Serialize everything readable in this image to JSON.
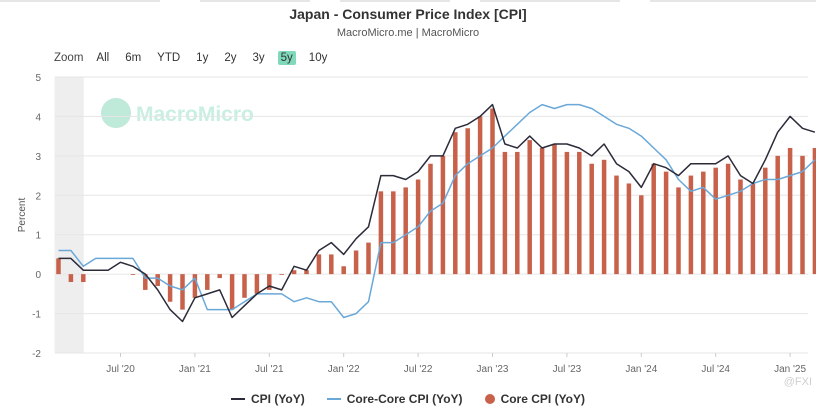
{
  "header": {
    "title": "Japan - Consumer Price Index [CPI]",
    "subtitle": "MacroMicro.me | MacroMicro"
  },
  "range_selector": {
    "zoom_label": "Zoom",
    "options": [
      "All",
      "6m",
      "YTD",
      "1y",
      "2y",
      "3y",
      "5y",
      "10y"
    ],
    "active": "5y"
  },
  "watermark": {
    "text": "MacroMicro",
    "corner_text": "@FXI"
  },
  "colors": {
    "cpi": "#2b2b3a",
    "core_core": "#6aa8d8",
    "core": "#c8614a",
    "active_range": "#7fd9ba",
    "grid": "#e6e6e6",
    "shade": "#eeeeee"
  },
  "chart_data": {
    "type": "bar+line",
    "ylabel": "Percent",
    "ylim": [
      -2,
      5
    ],
    "yticks": [
      -2,
      -1,
      0,
      1,
      2,
      3,
      4,
      5
    ],
    "x_tick_labels": [
      "Jul '20",
      "Jan '21",
      "Jul '21",
      "Jan '22",
      "Jul '22",
      "Jan '23",
      "Jul '23",
      "Jan '24",
      "Jul '24",
      "Jan '25"
    ],
    "x_tick_months": [
      "2020-07",
      "2021-01",
      "2021-07",
      "2022-01",
      "2022-07",
      "2023-01",
      "2023-07",
      "2024-01",
      "2024-07",
      "2025-01"
    ],
    "shaded_period": {
      "start": "2020-02",
      "end": "2020-04"
    },
    "months": [
      "2020-02",
      "2020-03",
      "2020-04",
      "2020-05",
      "2020-06",
      "2020-07",
      "2020-08",
      "2020-09",
      "2020-10",
      "2020-11",
      "2020-12",
      "2021-01",
      "2021-02",
      "2021-03",
      "2021-04",
      "2021-05",
      "2021-06",
      "2021-07",
      "2021-08",
      "2021-09",
      "2021-10",
      "2021-11",
      "2021-12",
      "2022-01",
      "2022-02",
      "2022-03",
      "2022-04",
      "2022-05",
      "2022-06",
      "2022-07",
      "2022-08",
      "2022-09",
      "2022-10",
      "2022-11",
      "2022-12",
      "2023-01",
      "2023-02",
      "2023-03",
      "2023-04",
      "2023-05",
      "2023-06",
      "2023-07",
      "2023-08",
      "2023-09",
      "2023-10",
      "2023-11",
      "2023-12",
      "2024-01",
      "2024-02",
      "2024-03",
      "2024-04",
      "2024-05",
      "2024-06",
      "2024-07",
      "2024-08",
      "2024-09",
      "2024-10",
      "2024-11",
      "2024-12",
      "2025-01",
      "2025-02",
      "2025-03"
    ],
    "series": [
      {
        "name": "CPI (YoY)",
        "kind": "line",
        "values": [
          0.4,
          0.4,
          0.1,
          0.1,
          0.1,
          0.3,
          0.2,
          0.0,
          -0.4,
          -0.9,
          -1.2,
          -0.6,
          -0.5,
          -0.4,
          -1.1,
          -0.8,
          -0.5,
          -0.3,
          -0.4,
          0.2,
          0.1,
          0.6,
          0.8,
          0.5,
          0.9,
          1.2,
          2.5,
          2.5,
          2.4,
          2.6,
          3.0,
          3.0,
          3.7,
          3.8,
          4.0,
          4.3,
          3.3,
          3.2,
          3.5,
          3.2,
          3.3,
          3.3,
          3.2,
          3.0,
          3.3,
          2.8,
          2.6,
          2.2,
          2.8,
          2.7,
          2.5,
          2.8,
          2.8,
          2.8,
          3.0,
          2.5,
          2.3,
          2.9,
          3.6,
          4.0,
          3.7,
          3.6
        ]
      },
      {
        "name": "Core-Core CPI (YoY)",
        "kind": "line",
        "values": [
          0.6,
          0.6,
          0.2,
          0.4,
          0.4,
          0.4,
          0.4,
          -0.1,
          -0.1,
          -0.3,
          -0.4,
          -0.1,
          -0.9,
          -0.9,
          -0.9,
          -0.7,
          -0.5,
          -0.5,
          -0.5,
          -0.7,
          -0.6,
          -0.7,
          -0.7,
          -1.1,
          -1.0,
          -0.7,
          0.8,
          0.8,
          1.0,
          1.2,
          1.6,
          1.8,
          2.5,
          2.8,
          3.0,
          3.2,
          3.5,
          3.8,
          4.1,
          4.3,
          4.2,
          4.3,
          4.3,
          4.2,
          4.0,
          3.8,
          3.7,
          3.5,
          3.2,
          2.9,
          2.4,
          2.1,
          2.2,
          1.9,
          2.0,
          2.1,
          2.3,
          2.4,
          2.4,
          2.5,
          2.6,
          2.9
        ]
      },
      {
        "name": "Core CPI (YoY)",
        "kind": "bar",
        "values": [
          0.4,
          -0.2,
          -0.2,
          null,
          null,
          null,
          0.0,
          -0.4,
          -0.3,
          -0.7,
          -0.9,
          -0.6,
          -0.4,
          -0.1,
          -0.9,
          -0.6,
          -0.5,
          -0.4,
          0.0,
          0.1,
          0.1,
          0.5,
          0.5,
          0.2,
          0.6,
          0.8,
          2.1,
          2.1,
          2.2,
          2.4,
          2.8,
          3.0,
          3.6,
          3.7,
          4.0,
          4.2,
          3.1,
          3.1,
          3.4,
          3.2,
          3.3,
          3.1,
          3.1,
          2.8,
          2.9,
          2.5,
          2.3,
          2.0,
          2.8,
          2.6,
          2.2,
          2.5,
          2.6,
          2.7,
          2.8,
          2.4,
          2.3,
          2.7,
          3.0,
          3.2,
          3.0,
          3.2
        ]
      }
    ],
    "legend_position": "bottom-center",
    "grid": true
  }
}
